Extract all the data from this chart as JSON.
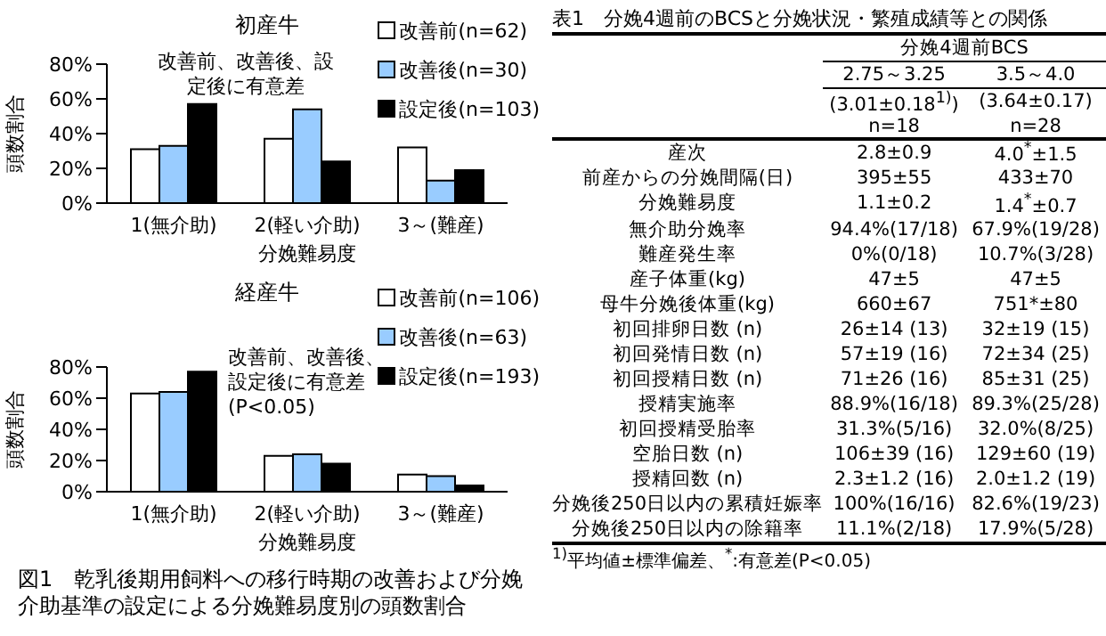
{
  "chart_data": [
    {
      "type": "bar",
      "title": "初産牛",
      "xlabel": "分娩難易度",
      "ylabel": "頭数割合",
      "categories": [
        "1(無介助)",
        "2(軽い介助)",
        "3～(難産)"
      ],
      "series": [
        {
          "name": "改善前(n=62)",
          "color": "#ffffff",
          "values": [
            31,
            37,
            32
          ]
        },
        {
          "name": "改善後(n=30)",
          "color": "#99ccff",
          "values": [
            33,
            54,
            13
          ]
        },
        {
          "name": "設定後(n=103)",
          "color": "#000000",
          "values": [
            57,
            24,
            19
          ]
        }
      ],
      "ylim": [
        0,
        80
      ],
      "yticks": [
        {
          "value": 0,
          "label": "0%"
        },
        {
          "value": 20,
          "label": "20%"
        },
        {
          "value": 40,
          "label": "40%"
        },
        {
          "value": 60,
          "label": "60%"
        },
        {
          "value": 80,
          "label": "80%"
        }
      ],
      "legend": "top right",
      "annotations": [
        "改善前、改善後、設定後に有意差"
      ]
    },
    {
      "type": "bar",
      "title": "経産牛",
      "xlabel": "分娩難易度",
      "ylabel": "頭数割合",
      "categories": [
        "1(無介助)",
        "2(軽い介助)",
        "3～(難産)"
      ],
      "series": [
        {
          "name": "改善前(n=106)",
          "color": "#ffffff",
          "values": [
            63,
            23,
            11
          ]
        },
        {
          "name": "改善後(n=63)",
          "color": "#99ccff",
          "values": [
            64,
            24,
            10
          ]
        },
        {
          "name": "設定後(n=193)",
          "color": "#000000",
          "values": [
            77,
            18,
            4
          ]
        }
      ],
      "ylim": [
        0,
        80
      ],
      "yticks": [
        {
          "value": 0,
          "label": "0%"
        },
        {
          "value": 20,
          "label": "20%"
        },
        {
          "value": 40,
          "label": "40%"
        },
        {
          "value": 60,
          "label": "60%"
        },
        {
          "value": 80,
          "label": "80%"
        }
      ],
      "legend": "top right",
      "annotations": [
        "改善前、改善後、設定後に有意差(P<0.05)",
        "図1　乾乳後期用飼料への移行時期の改善および分娩介助基準の設定による分娩難易度別の頭数割合"
      ]
    },
    {
      "type": "other",
      "title": "表1　分娩4週前のBCSと分娩状況・繁殖成績等との関係",
      "y_categories": [
        null,
        null,
        null,
        "産次",
        "前産からの分娩間隔(日)",
        "分娩難易度",
        "無介助分娩率",
        "難産発生率",
        "産子体重(kg)",
        "母牛分娩後体重(kg)",
        "初回排卵日数 (n)",
        "初回発情日数 (n)",
        "初回授精日数 (n)",
        "授精実施率",
        "初回授精受胎率",
        "空胎日数 (n)",
        "授精回数 (n)",
        "分娩後250日以内の累積妊娠率",
        "分娩後250日以内の除籍率"
      ],
      "cell_labels": [
        [
          "2.75～3.25",
          "3.5～4.0"
        ],
        [
          "(3.01±0.18$^{1)}$)",
          "(3.64±0.17)"
        ],
        [
          "n=18",
          "n=28"
        ],
        [
          "2.8±0.9",
          "4.0$^{*}$±1.5"
        ],
        [
          "395±55",
          "433±70"
        ],
        [
          "1.1±0.2",
          "1.4$^{*}$±0.7"
        ],
        [
          "94.4%(17/18)",
          "67.9%(19/28)"
        ],
        [
          "0%(0/18)",
          "10.7%(3/28)"
        ],
        [
          "47±5",
          "47±5"
        ],
        [
          "660±67",
          "751*±80"
        ],
        [
          "26±14 (13)",
          "32±19 (15)"
        ],
        [
          "57±19 (16)",
          "72±34 (25)"
        ],
        [
          "71±26 (16)",
          "85±31 (25)"
        ],
        [
          "88.9%(16/18)",
          "89.3%(25/28)"
        ],
        [
          "31.3%(5/16)",
          "32.0%(8/25)"
        ],
        [
          "106±39 (16)",
          "129±60 (19)"
        ],
        [
          "2.3±1.2 (16)",
          "2.0±1.2 (19)"
        ],
        [
          "100%(16/16)",
          "82.6%(19/23)"
        ],
        [
          "11.1%(2/18)",
          "17.9%(5/28)"
        ]
      ],
      "annotations": [
        "分娩4週前BCS",
        "$^{1)}$平均値±標準偏差、$^{*}$:有意差(P<0.05)"
      ]
    }
  ]
}
